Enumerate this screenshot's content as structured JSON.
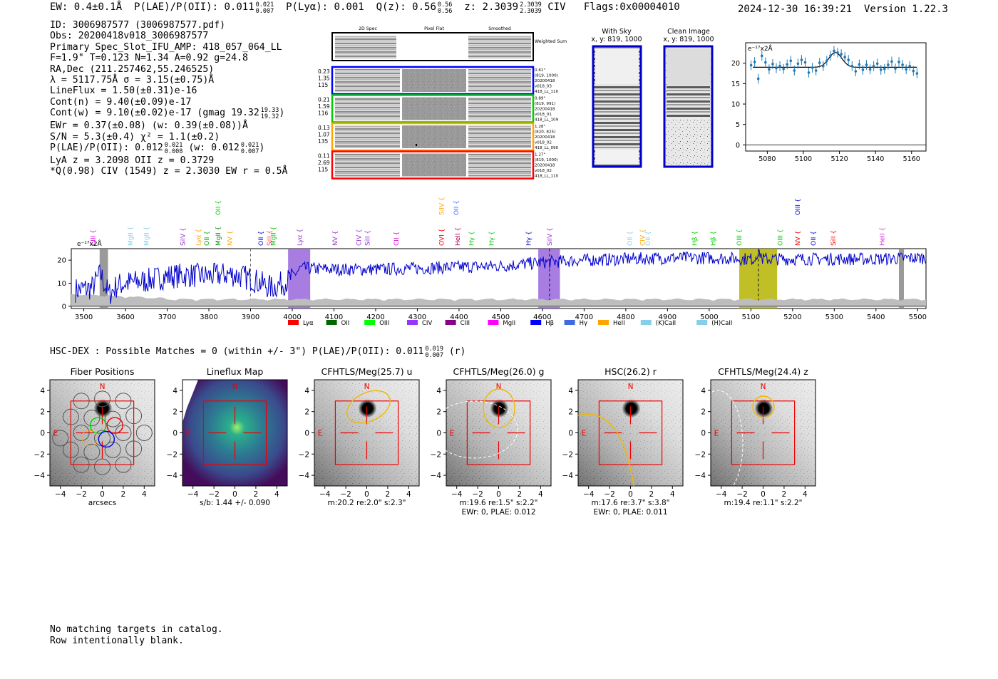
{
  "header": {
    "ew_label": "EW:",
    "ew_value": "0.4±0.1Å",
    "plae_label": "P(LAE)/P(OII):",
    "plae_value": "0.011",
    "plae_hi": "0.021",
    "plae_lo": "0.007",
    "plya_label": "P(Lyα):",
    "plya_value": "0.001",
    "qz_label": "Q(z):",
    "qz_value": "0.56",
    "qz_hi": "0.56",
    "qz_lo": "0.56",
    "z_label": "z:",
    "z_value": "2.3039",
    "z_hi": "2.3039",
    "z_lo": "2.3039",
    "z_line": "CIV",
    "flags": "Flags:0x00004010",
    "timestamp": "2024-12-30 16:39:21",
    "version": "Version 1.22.3"
  },
  "info": {
    "id": "ID: 3006987577 (3006987577.pdf)",
    "obs": "Obs: 20200418v018_3006987577",
    "primary": "Primary Spec_Slot_IFU_AMP: 418_057_064_LL",
    "fwhm": "F=1.9\"  T=0.123  N=1.34  A=0.92  g=24.8",
    "radec": "RA,Dec (211.257462,55.246525)",
    "lambda": "λ = 5117.75Å  σ = 3.15(±0.75)Å",
    "lineflux": "LineFlux = 1.50(±0.31)e-16",
    "contn": "Cont(n) = 9.40(±0.09)e-17",
    "contw": "Cont(w) = 9.10(±0.02)e-17 (gmag 19.32",
    "contw_hi": "19.33",
    "contw_lo": "19.32",
    "ewr": "EWr = 0.37(±0.08) (w: 0.39(±0.08))Å",
    "sn": "S/N = 5.3(±0.4)  χ² = 1.1(±0.2)",
    "plae": "P(LAE)/P(OII): 0.012",
    "plae_hi": "0.021",
    "plae_lo": "0.008",
    "plae_w": "(w: 0.012",
    "plae_w_hi": "0.021",
    "plae_w_lo": "0.007",
    "lya": "LyA z = 3.2098  OII z = 0.3729",
    "civ": "*Q(0.98) CIV (1549) z = 2.3030  EW r = 0.5Å"
  },
  "cutouts": {
    "col_headers": [
      "2D Spec",
      "Pixel Flat",
      "Smoothed"
    ],
    "weighted_label": "Weighted Sum",
    "rows": [
      {
        "left": [
          "0.23",
          "1.35",
          "115"
        ],
        "right": [
          "0.61\"",
          "(819, 1000)",
          "20200418",
          "v018_03",
          "418_LL_110"
        ]
      },
      {
        "left": [
          "0.21",
          "1.59",
          "116"
        ],
        "right": [
          "0.89\"",
          "(819, 991)",
          "20200418",
          "v018_01",
          "418_LL_109"
        ]
      },
      {
        "left": [
          "0.13",
          "1.07",
          "135"
        ],
        "right": [
          "1.28\"",
          "(820, 825)",
          "20200418",
          "v018_02",
          "418_LL_090"
        ]
      },
      {
        "left": [
          "0.11",
          "2.69",
          "115"
        ],
        "right": [
          "1.27\"",
          "(819, 1000)",
          "20200418",
          "v018_02",
          "418_LL_110"
        ]
      }
    ],
    "row_colors": [
      "#0000ff",
      "#00cc00",
      "#ffa500",
      "#ff0000"
    ],
    "with_sky_title": "With Sky",
    "with_sky_sub": "x, y: 819, 1000",
    "clean_title": "Clean Image",
    "clean_sub": "x, y: 819, 1000"
  },
  "zoom_chart": {
    "type": "scatter",
    "unit_label": "e⁻¹⁷x2Å",
    "x_ticks": [
      "5080",
      "5100",
      "5120",
      "5140",
      "5160"
    ],
    "y_ticks": [
      "0",
      "5",
      "10",
      "15",
      "20"
    ],
    "xlim": [
      5068,
      5168
    ],
    "ylim": [
      -1.5,
      25
    ],
    "x": [
      5071,
      5073,
      5075,
      5077,
      5079,
      5081,
      5083,
      5085,
      5087,
      5089,
      5091,
      5093,
      5095,
      5097,
      5099,
      5101,
      5103,
      5105,
      5107,
      5109,
      5111,
      5113,
      5115,
      5117,
      5119,
      5121,
      5123,
      5125,
      5127,
      5129,
      5131,
      5133,
      5135,
      5137,
      5139,
      5141,
      5143,
      5145,
      5147,
      5149,
      5151,
      5153,
      5155,
      5157,
      5159,
      5161,
      5163
    ],
    "y": [
      19.5,
      20.3,
      16.2,
      21.8,
      20.2,
      18.5,
      19.8,
      18.8,
      19.3,
      18.6,
      19.7,
      20.6,
      18.2,
      19.9,
      20.8,
      20.2,
      17.7,
      18.9,
      18.2,
      20.1,
      19.3,
      20.6,
      21.8,
      23.0,
      22.6,
      22.2,
      21.5,
      20.8,
      19.3,
      18.0,
      19.7,
      18.4,
      19.6,
      18.5,
      19.3,
      19.9,
      18.4,
      18.6,
      19.6,
      20.4,
      18.7,
      20.3,
      19.6,
      18.5,
      19.3,
      18.1,
      17.5
    ],
    "yerr": 1.2,
    "fit_center": 5117.75,
    "fit_sigma": 3.6,
    "fit_base": 19.0,
    "fit_amp": 3.6
  },
  "spectrum": {
    "type": "line",
    "unit_label": "e⁻¹⁷x2Å",
    "x_ticks": [
      "3500",
      "3600",
      "3700",
      "3800",
      "3900",
      "4000",
      "4100",
      "4200",
      "4300",
      "4400",
      "4500",
      "4600",
      "4700",
      "4800",
      "4900",
      "5000",
      "5100",
      "5200",
      "5300",
      "5400",
      "5500"
    ],
    "y_ticks": [
      "0",
      "10",
      "20"
    ],
    "xlim": [
      3470,
      5520
    ],
    "ylim": [
      -1,
      25
    ],
    "anchor_x": [
      3480,
      3520,
      3540,
      3560,
      3580,
      3600,
      3650,
      3700,
      3750,
      3800,
      3850,
      3900,
      3950,
      3990,
      4020,
      4100,
      4200,
      4300,
      4400,
      4500,
      4600,
      4700,
      4800,
      4900,
      5000,
      5100,
      5200,
      5300,
      5400,
      5500,
      5520
    ],
    "anchor_y": [
      7,
      8,
      14,
      5,
      9,
      10,
      11,
      13,
      13.5,
      13,
      14,
      12,
      8,
      11,
      16.5,
      16,
      16,
      16.5,
      17,
      17.5,
      19,
      20,
      20.5,
      21,
      21,
      20.5,
      20.5,
      20.5,
      20.5,
      21,
      21
    ],
    "shaded_regions": [
      {
        "x0": 3538,
        "x1": 3558,
        "color": "#888888"
      },
      {
        "x0": 3990,
        "x1": 4043,
        "color": "#9966dd"
      },
      {
        "x0": 4590,
        "x1": 4642,
        "color": "#9966dd"
      },
      {
        "x0": 5072,
        "x1": 5163,
        "color": "#b5b500"
      },
      {
        "x0": 5455,
        "x1": 5467,
        "color": "#888888"
      }
    ],
    "dashed_lines": [
      {
        "x": 3900,
        "style": "gray"
      },
      {
        "x": 4617,
        "style": "dark"
      },
      {
        "x": 5118,
        "style": "dark"
      }
    ],
    "line_labels": [
      {
        "x": 3522,
        "text": "CIII",
        "color": "#dd00dd",
        "row": 0
      },
      {
        "x": 3612,
        "text": "MgII",
        "color": "#87ceeb",
        "row": 0
      },
      {
        "x": 3650,
        "text": "MgII",
        "color": "#87ceeb",
        "row": 0
      },
      {
        "x": 3738,
        "text": "SiIV",
        "color": "#9933cc",
        "row": 0
      },
      {
        "x": 3775,
        "text": "Lyα",
        "color": "#ffa500",
        "row": 0
      },
      {
        "x": 3795,
        "text": "OII",
        "color": "#00aa00",
        "row": 0
      },
      {
        "x": 3822,
        "text": "MgII",
        "color": "#009900",
        "row": 0
      },
      {
        "x": 3822,
        "text": "OII",
        "color": "#00cc00",
        "row": 1
      },
      {
        "x": 3850,
        "text": "NV",
        "color": "#ffa500",
        "row": 0
      },
      {
        "x": 3925,
        "text": "OII",
        "color": "#0000cc",
        "row": 0
      },
      {
        "x": 3945,
        "text": "SiII",
        "color": "#ff4444",
        "row": 0
      },
      {
        "x": 3955,
        "text": "MgII",
        "color": "#00cc00",
        "row": 0
      },
      {
        "x": 4018,
        "text": "Lyα",
        "color": "#9933cc",
        "row": 0
      },
      {
        "x": 4103,
        "text": "NV",
        "color": "#9933cc",
        "row": 0
      },
      {
        "x": 4160,
        "text": "CIV",
        "color": "#9933cc",
        "row": 0
      },
      {
        "x": 4180,
        "text": "SiII",
        "color": "#9933cc",
        "row": 0
      },
      {
        "x": 4250,
        "text": "CII",
        "color": "#dd00dd",
        "row": 0
      },
      {
        "x": 4358,
        "text": "OVI",
        "color": "#ff0000",
        "row": 0
      },
      {
        "x": 4358,
        "text": "SiIV",
        "color": "#ffa500",
        "row": 1
      },
      {
        "x": 4393,
        "text": "OII",
        "color": "#4466ff",
        "row": 1
      },
      {
        "x": 4397,
        "text": "HeII",
        "color": "#aa0055",
        "row": 0
      },
      {
        "x": 4430,
        "text": "Hγ",
        "color": "#00cc00",
        "row": 0
      },
      {
        "x": 4478,
        "text": "Hγ",
        "color": "#00cc00",
        "row": 0
      },
      {
        "x": 4567,
        "text": "Hγ",
        "color": "#0000cc",
        "row": 0
      },
      {
        "x": 4617,
        "text": "SiIV",
        "color": "#9933cc",
        "row": 0
      },
      {
        "x": 4810,
        "text": "OII",
        "color": "#87ceeb",
        "row": 0
      },
      {
        "x": 4840,
        "text": "CIV",
        "color": "#ffa500",
        "row": 0
      },
      {
        "x": 4853,
        "text": "OII",
        "color": "#87ceeb",
        "row": 0
      },
      {
        "x": 4965,
        "text": "Hβ",
        "color": "#00cc00",
        "row": 0
      },
      {
        "x": 5010,
        "text": "Hβ",
        "color": "#00cc00",
        "row": 0
      },
      {
        "x": 5072,
        "text": "OIII",
        "color": "#00cc00",
        "row": 0
      },
      {
        "x": 5170,
        "text": "OIII",
        "color": "#00cc00",
        "row": 0
      },
      {
        "x": 5212,
        "text": "NV",
        "color": "#ff0000",
        "row": 0
      },
      {
        "x": 5212,
        "text": "OIII",
        "color": "#0000cc",
        "row": 1
      },
      {
        "x": 5250,
        "text": "OII",
        "color": "#0000cc",
        "row": 0
      },
      {
        "x": 5298,
        "text": "SiII",
        "color": "#ff0000",
        "row": 0
      },
      {
        "x": 5415,
        "text": "HeII",
        "color": "#cc33cc",
        "row": 0
      }
    ],
    "legend": [
      {
        "label": "Lyα",
        "color": "#ff0000"
      },
      {
        "label": "OII",
        "color": "#006600"
      },
      {
        "label": "OIII",
        "color": "#00ff00"
      },
      {
        "label": "CIV",
        "color": "#9933ff"
      },
      {
        "label": "CIII",
        "color": "#880088"
      },
      {
        "label": "MgII",
        "color": "#ff00ff"
      },
      {
        "label": "Hβ",
        "color": "#0000ff"
      },
      {
        "label": "Hγ",
        "color": "#4169e1"
      },
      {
        "label": "HeII",
        "color": "#ffa500"
      },
      {
        "label": "(K)CaII",
        "color": "#87ceeb"
      },
      {
        "label": "(H)CaII",
        "color": "#87ceeb"
      }
    ]
  },
  "hsc": {
    "title": "HSC-DEX : Possible Matches = 0 (within +/- 3\")  P(LAE)/P(OII): 0.011",
    "plae_hi": "0.019",
    "plae_lo": "0.007",
    "band": "(r)"
  },
  "images": [
    {
      "title": "Fiber Positions",
      "caption1": "arcsecs",
      "caption2": ""
    },
    {
      "title": "Lineflux Map",
      "caption1": "s/b: 1.44 +/- 0.090",
      "caption2": ""
    },
    {
      "title": "CFHTLS/Meg(25.7) u",
      "caption1": "m:20.2  re:2.0\"  s:2.3\"",
      "caption2": ""
    },
    {
      "title": "CFHTLS/Meg(26.0) g",
      "caption1": "m:19.6  re:1.5\"  s:2.2\"",
      "caption2": "EWr: 0, PLAE: 0.012"
    },
    {
      "title": "HSC(26.2) r",
      "caption1": "m:17.6  re:3.7\"  s:3.8\"",
      "caption2": "EWr: 0, PLAE: 0.011"
    },
    {
      "title": "CFHTLS/Meg(24.4) z",
      "caption1": "m:19.4  re:1.1\"  s:2.2\"",
      "caption2": ""
    }
  ],
  "image_axes": {
    "x_ticks": [
      "−4",
      "−2",
      "0",
      "2",
      "4"
    ],
    "y_ticks": [
      "4",
      "2",
      "0",
      "−2",
      "−4"
    ],
    "north": "N",
    "east": "E"
  },
  "footer": {
    "line1": "No matching targets in catalog.",
    "line2": "Row intentionally blank."
  }
}
